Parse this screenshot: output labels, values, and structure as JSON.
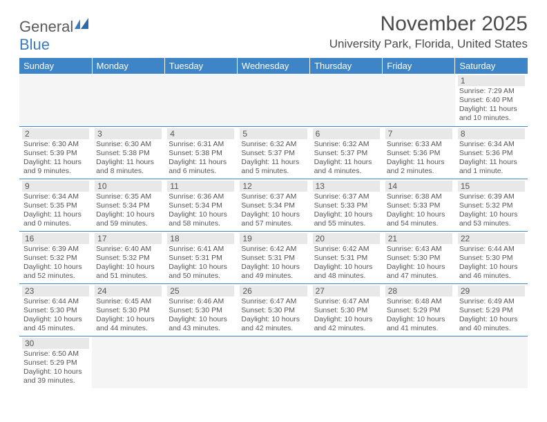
{
  "logo": {
    "word1": "General",
    "word2": "Blue"
  },
  "title": "November 2025",
  "location": "University Park, Florida, United States",
  "colors": {
    "header_bg": "#3d85c6",
    "header_text": "#ffffff",
    "daynum_bg": "#e8e8e8",
    "text": "#555555",
    "rule": "#3d85c6"
  },
  "weekdays": [
    "Sunday",
    "Monday",
    "Tuesday",
    "Wednesday",
    "Thursday",
    "Friday",
    "Saturday"
  ],
  "days": {
    "1": {
      "sunrise": "7:29 AM",
      "sunset": "6:40 PM",
      "daylight": "11 hours and 10 minutes."
    },
    "2": {
      "sunrise": "6:30 AM",
      "sunset": "5:39 PM",
      "daylight": "11 hours and 9 minutes."
    },
    "3": {
      "sunrise": "6:30 AM",
      "sunset": "5:38 PM",
      "daylight": "11 hours and 8 minutes."
    },
    "4": {
      "sunrise": "6:31 AM",
      "sunset": "5:38 PM",
      "daylight": "11 hours and 6 minutes."
    },
    "5": {
      "sunrise": "6:32 AM",
      "sunset": "5:37 PM",
      "daylight": "11 hours and 5 minutes."
    },
    "6": {
      "sunrise": "6:32 AM",
      "sunset": "5:37 PM",
      "daylight": "11 hours and 4 minutes."
    },
    "7": {
      "sunrise": "6:33 AM",
      "sunset": "5:36 PM",
      "daylight": "11 hours and 2 minutes."
    },
    "8": {
      "sunrise": "6:34 AM",
      "sunset": "5:36 PM",
      "daylight": "11 hours and 1 minute."
    },
    "9": {
      "sunrise": "6:34 AM",
      "sunset": "5:35 PM",
      "daylight": "11 hours and 0 minutes."
    },
    "10": {
      "sunrise": "6:35 AM",
      "sunset": "5:34 PM",
      "daylight": "10 hours and 59 minutes."
    },
    "11": {
      "sunrise": "6:36 AM",
      "sunset": "5:34 PM",
      "daylight": "10 hours and 58 minutes."
    },
    "12": {
      "sunrise": "6:37 AM",
      "sunset": "5:34 PM",
      "daylight": "10 hours and 57 minutes."
    },
    "13": {
      "sunrise": "6:37 AM",
      "sunset": "5:33 PM",
      "daylight": "10 hours and 55 minutes."
    },
    "14": {
      "sunrise": "6:38 AM",
      "sunset": "5:33 PM",
      "daylight": "10 hours and 54 minutes."
    },
    "15": {
      "sunrise": "6:39 AM",
      "sunset": "5:32 PM",
      "daylight": "10 hours and 53 minutes."
    },
    "16": {
      "sunrise": "6:39 AM",
      "sunset": "5:32 PM",
      "daylight": "10 hours and 52 minutes."
    },
    "17": {
      "sunrise": "6:40 AM",
      "sunset": "5:32 PM",
      "daylight": "10 hours and 51 minutes."
    },
    "18": {
      "sunrise": "6:41 AM",
      "sunset": "5:31 PM",
      "daylight": "10 hours and 50 minutes."
    },
    "19": {
      "sunrise": "6:42 AM",
      "sunset": "5:31 PM",
      "daylight": "10 hours and 49 minutes."
    },
    "20": {
      "sunrise": "6:42 AM",
      "sunset": "5:31 PM",
      "daylight": "10 hours and 48 minutes."
    },
    "21": {
      "sunrise": "6:43 AM",
      "sunset": "5:30 PM",
      "daylight": "10 hours and 47 minutes."
    },
    "22": {
      "sunrise": "6:44 AM",
      "sunset": "5:30 PM",
      "daylight": "10 hours and 46 minutes."
    },
    "23": {
      "sunrise": "6:44 AM",
      "sunset": "5:30 PM",
      "daylight": "10 hours and 45 minutes."
    },
    "24": {
      "sunrise": "6:45 AM",
      "sunset": "5:30 PM",
      "daylight": "10 hours and 44 minutes."
    },
    "25": {
      "sunrise": "6:46 AM",
      "sunset": "5:30 PM",
      "daylight": "10 hours and 43 minutes."
    },
    "26": {
      "sunrise": "6:47 AM",
      "sunset": "5:30 PM",
      "daylight": "10 hours and 42 minutes."
    },
    "27": {
      "sunrise": "6:47 AM",
      "sunset": "5:30 PM",
      "daylight": "10 hours and 42 minutes."
    },
    "28": {
      "sunrise": "6:48 AM",
      "sunset": "5:29 PM",
      "daylight": "10 hours and 41 minutes."
    },
    "29": {
      "sunrise": "6:49 AM",
      "sunset": "5:29 PM",
      "daylight": "10 hours and 40 minutes."
    },
    "30": {
      "sunrise": "6:50 AM",
      "sunset": "5:29 PM",
      "daylight": "10 hours and 39 minutes."
    }
  },
  "grid": [
    [
      null,
      null,
      null,
      null,
      null,
      null,
      "1"
    ],
    [
      "2",
      "3",
      "4",
      "5",
      "6",
      "7",
      "8"
    ],
    [
      "9",
      "10",
      "11",
      "12",
      "13",
      "14",
      "15"
    ],
    [
      "16",
      "17",
      "18",
      "19",
      "20",
      "21",
      "22"
    ],
    [
      "23",
      "24",
      "25",
      "26",
      "27",
      "28",
      "29"
    ],
    [
      "30",
      null,
      null,
      null,
      null,
      null,
      null
    ]
  ],
  "labels": {
    "sunrise": "Sunrise:",
    "sunset": "Sunset:",
    "daylight": "Daylight:"
  }
}
